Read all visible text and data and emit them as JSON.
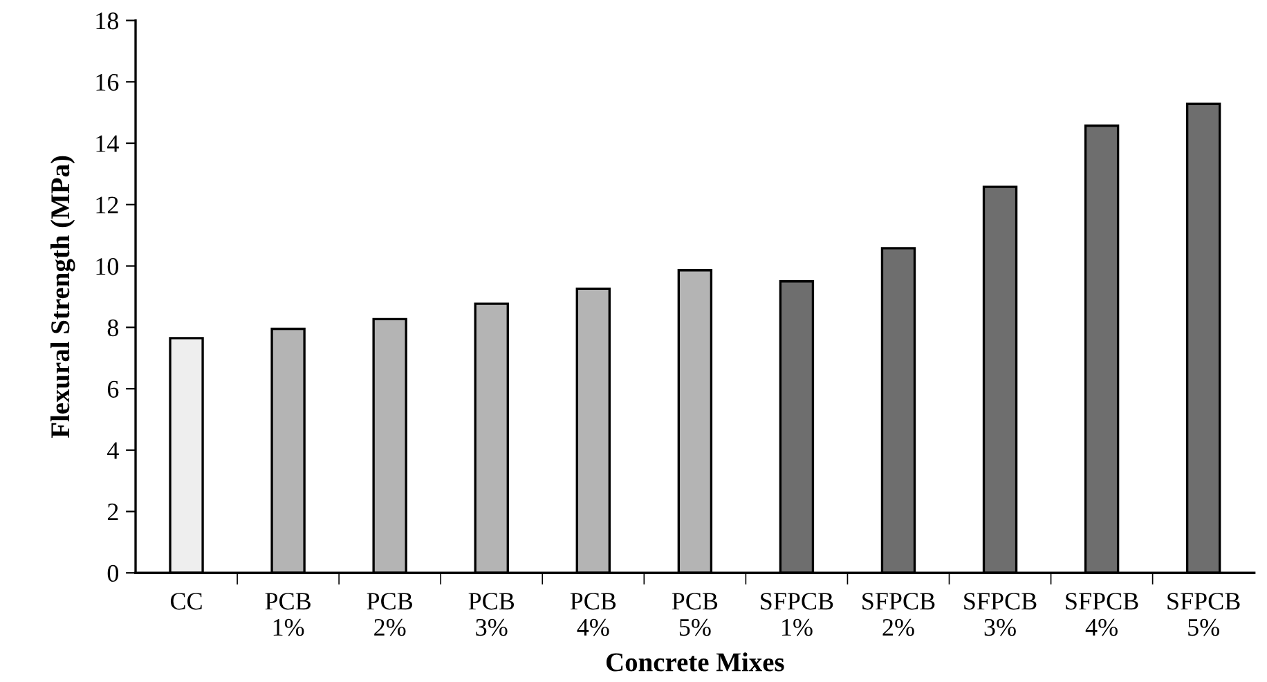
{
  "chart_data": {
    "type": "bar",
    "xlabel": "Concrete Mixes",
    "ylabel": "Flexural Strength (MPa)",
    "categories": [
      "CC",
      "PCB\n1%",
      "PCB\n2%",
      "PCB\n3%",
      "PCB\n4%",
      "PCB\n5%",
      "SFPCB\n1%",
      "SFPCB\n2%",
      "SFPCB\n3%",
      "SFPCB\n4%",
      "SFPCB\n5%"
    ],
    "values": [
      7.65,
      7.95,
      8.27,
      8.77,
      9.26,
      9.86,
      9.5,
      10.58,
      12.58,
      14.57,
      15.28
    ],
    "colors": [
      "#eeeeee",
      "#b4b4b4",
      "#b4b4b4",
      "#b4b4b4",
      "#b4b4b4",
      "#b4b4b4",
      "#6e6e6e",
      "#6e6e6e",
      "#6e6e6e",
      "#6e6e6e",
      "#6e6e6e"
    ],
    "ylim": [
      0,
      18
    ],
    "yticks": [
      0,
      2,
      4,
      6,
      8,
      10,
      12,
      14,
      16,
      18
    ],
    "grid": false
  }
}
